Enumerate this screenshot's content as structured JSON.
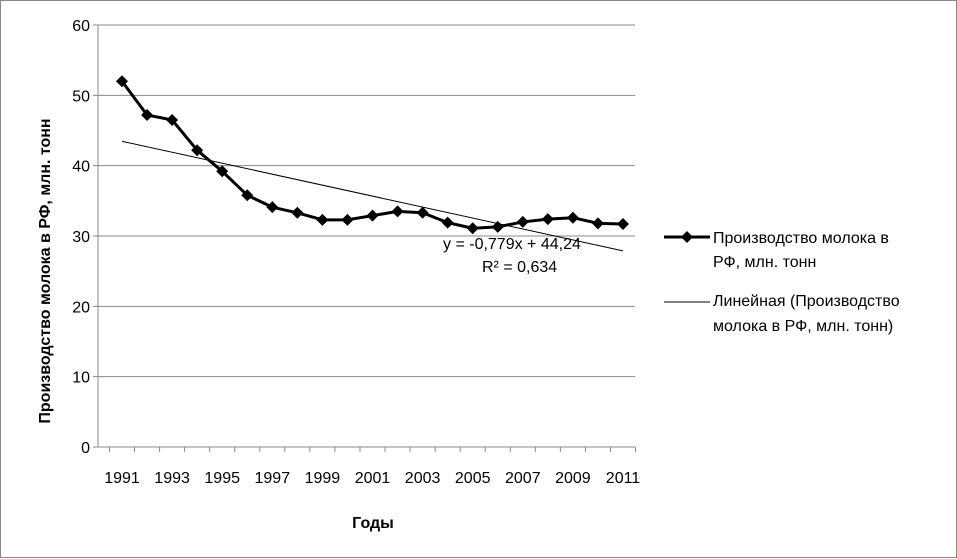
{
  "chart_data": {
    "type": "line",
    "title": "",
    "xlabel": "Годы",
    "ylabel": "Производство молока в РФ, млн. тонн",
    "ylim": [
      0,
      60
    ],
    "yticks": [
      "0",
      "10",
      "20",
      "30",
      "40",
      "50",
      "60"
    ],
    "xticks": [
      "1991",
      "1993",
      "1995",
      "1997",
      "1999",
      "2001",
      "2003",
      "2005",
      "2007",
      "2009",
      "2011"
    ],
    "x": [
      1991,
      1992,
      1993,
      1994,
      1995,
      1996,
      1997,
      1998,
      1999,
      2000,
      2001,
      2002,
      2003,
      2004,
      2005,
      2006,
      2007,
      2008,
      2009,
      2010,
      2011
    ],
    "grid": true,
    "legend_position": "right",
    "series": [
      {
        "name": "Производство молока в РФ, млн. тонн",
        "values": [
          52.0,
          47.2,
          46.5,
          42.2,
          39.2,
          35.8,
          34.1,
          33.3,
          32.3,
          32.3,
          32.9,
          33.5,
          33.3,
          31.9,
          31.1,
          31.3,
          32.0,
          32.4,
          32.6,
          31.8,
          31.7
        ],
        "color": "#000000",
        "marker": "diamond"
      }
    ],
    "trendline": {
      "name": "Линейная (Производство молока в РФ, млн. тонн)",
      "type": "linear",
      "slope": -0.779,
      "intercept": 44.24,
      "color": "#000000",
      "equation": "y = -0,779x + 44,24",
      "r_squared": "R² = 0,634"
    },
    "legend": {
      "series_label_line1": "Производство молока в",
      "series_label_line2": "РФ, млн. тонн",
      "trend_label_line1": "Линейная (Производство",
      "trend_label_line2": "молока в РФ, млн. тонн)"
    }
  }
}
